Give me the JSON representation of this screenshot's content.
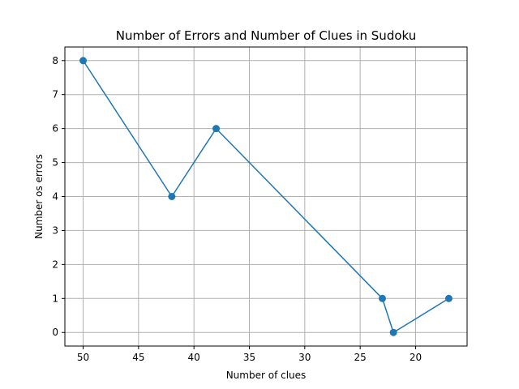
{
  "chart_data": {
    "type": "line",
    "title": "Number of Errors and Number of Clues in Sudoku",
    "xlabel": "Number of clues",
    "ylabel": "Number os errors",
    "x": [
      50,
      42,
      38,
      23,
      22,
      17
    ],
    "series": [
      {
        "values": [
          8,
          4,
          6,
          1,
          0,
          1
        ],
        "color": "#1f77b4",
        "marker": "circle"
      }
    ],
    "xlim": [
      51.65,
      15.35
    ],
    "ylim": [
      -0.4,
      8.4
    ],
    "x_inverted": true,
    "x_ticks": [
      50,
      45,
      40,
      35,
      30,
      25,
      20
    ],
    "y_ticks": [
      0,
      1,
      2,
      3,
      4,
      5,
      6,
      7,
      8
    ],
    "grid": true,
    "legend": "none"
  }
}
